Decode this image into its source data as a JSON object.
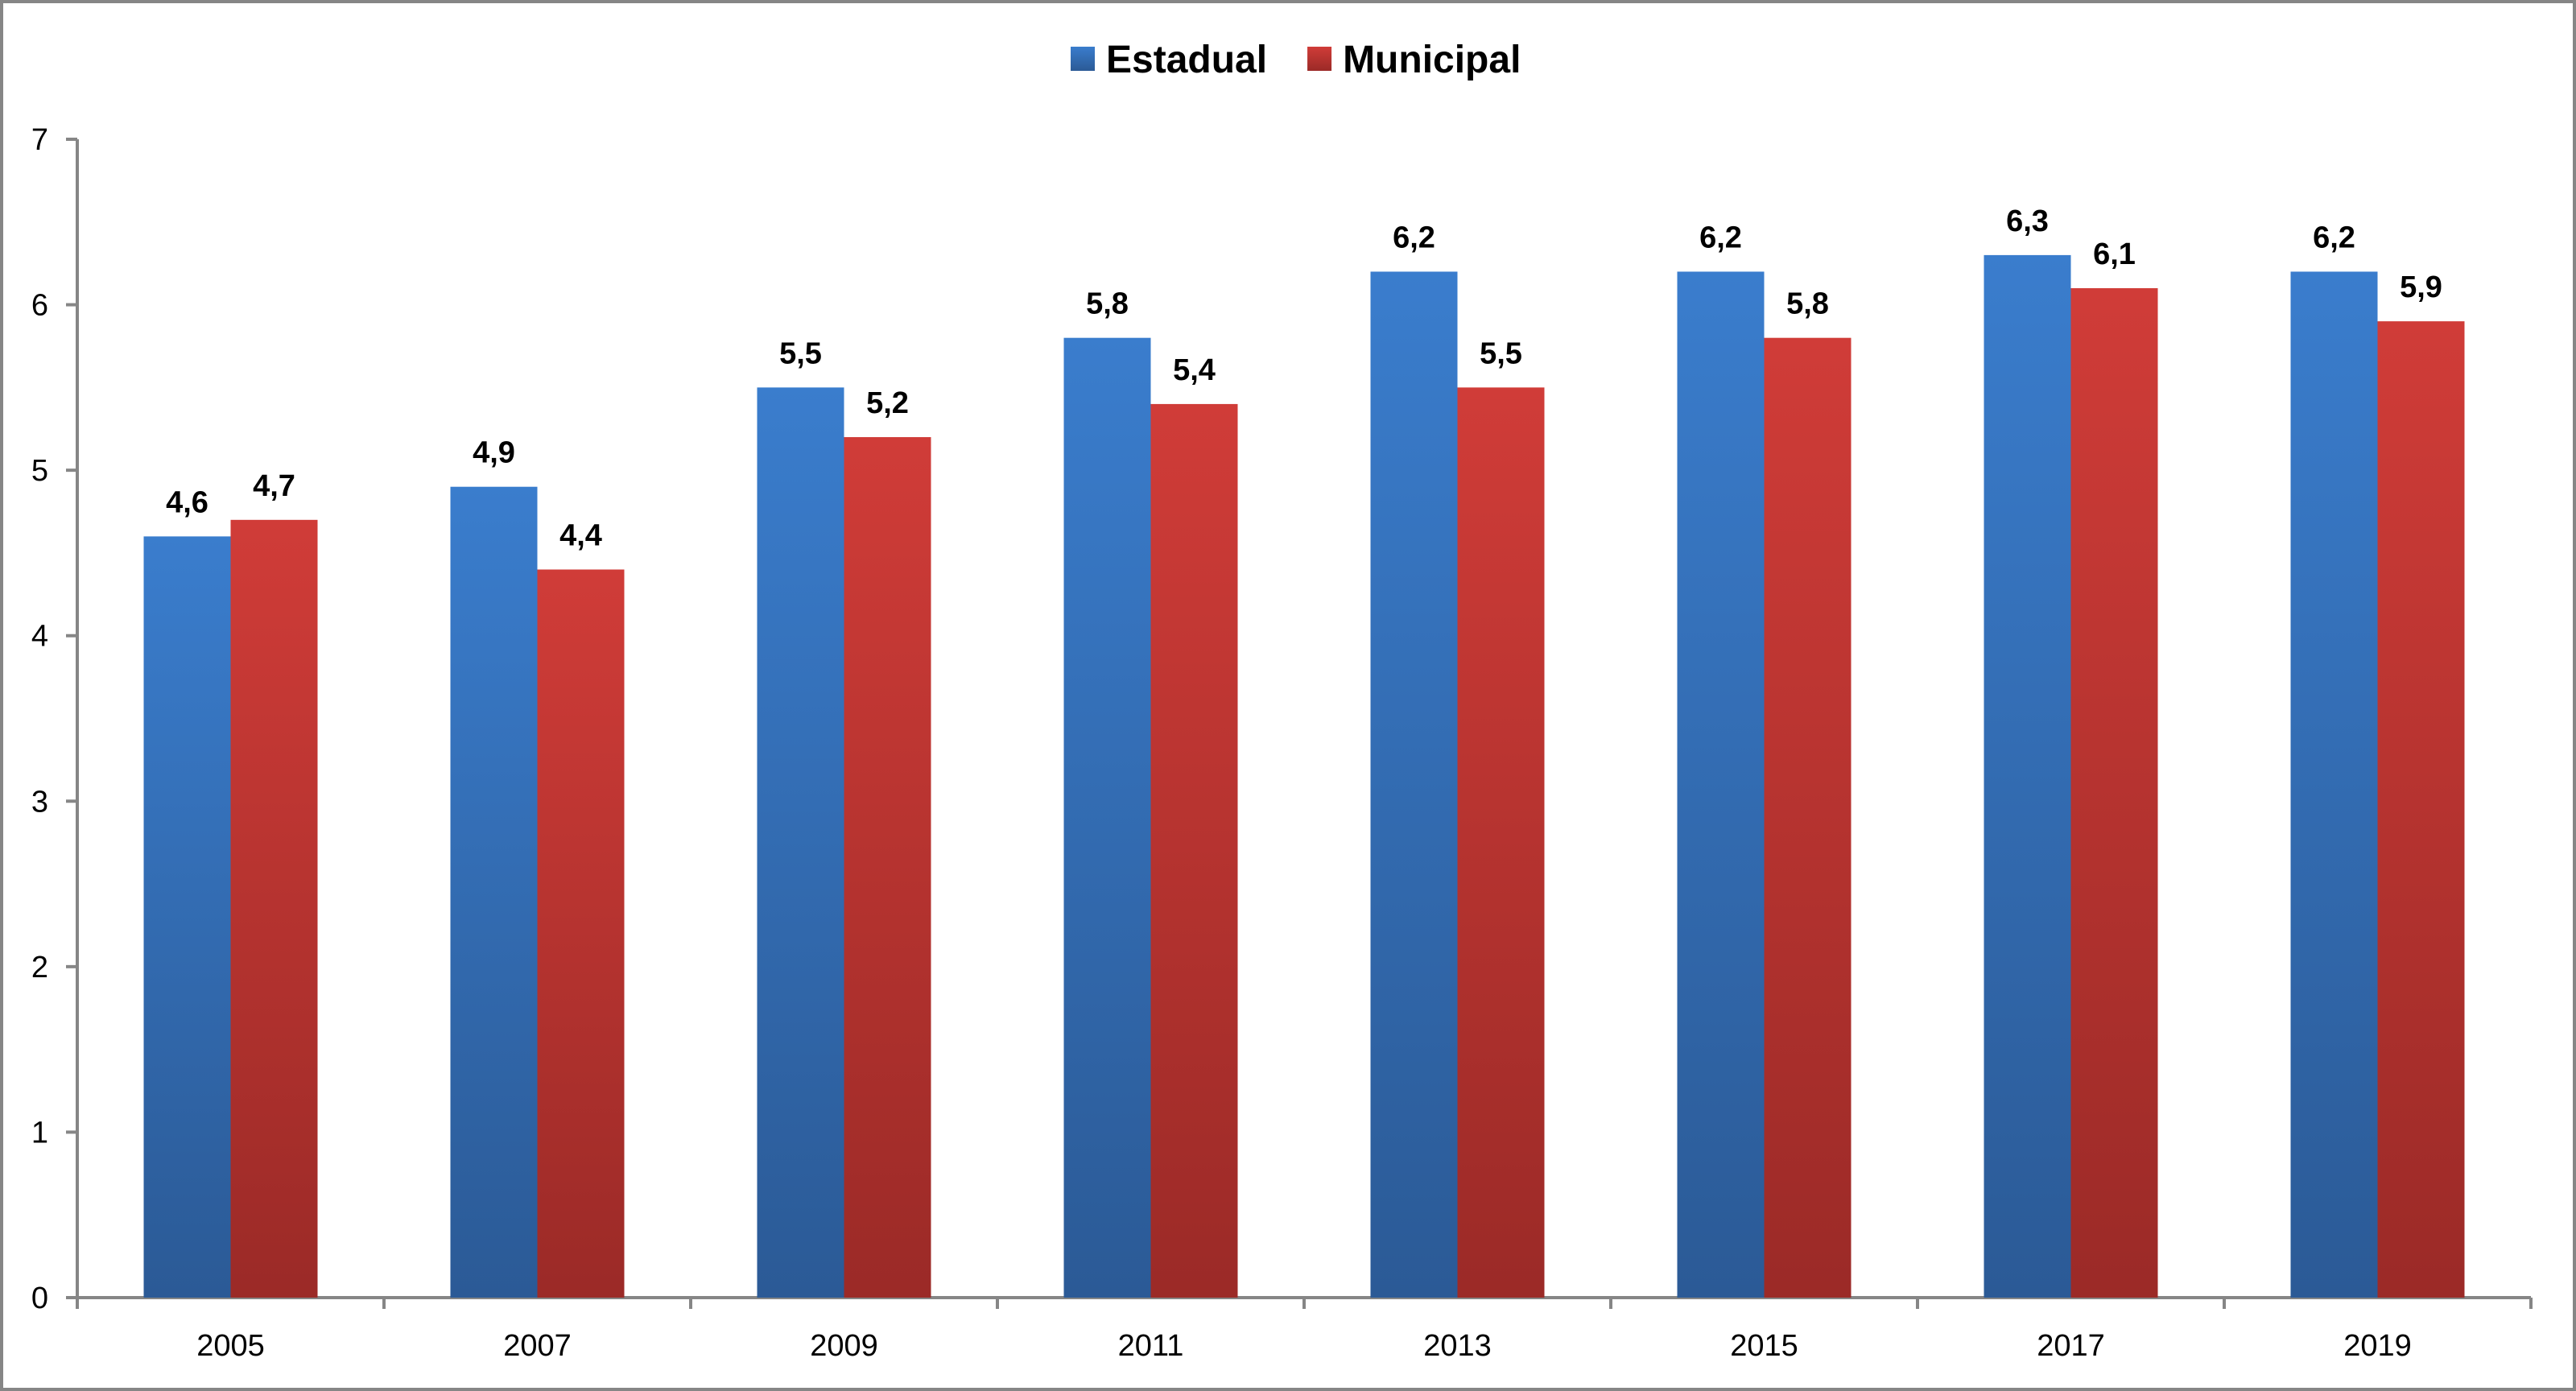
{
  "chart_data": {
    "type": "bar",
    "title": "",
    "xlabel": "",
    "ylabel": "",
    "categories": [
      "2005",
      "2007",
      "2009",
      "2011",
      "2013",
      "2015",
      "2017",
      "2019"
    ],
    "series": [
      {
        "name": "Estadual",
        "color": "#3a7dcd",
        "values": [
          4.6,
          4.9,
          5.5,
          5.8,
          6.2,
          6.2,
          6.3,
          6.2
        ],
        "labels": [
          "4,6",
          "4,9",
          "5,5",
          "5,8",
          "6,2",
          "6,2",
          "6,3",
          "6,2"
        ]
      },
      {
        "name": "Municipal",
        "color": "#cf3c38",
        "values": [
          4.7,
          4.4,
          5.2,
          5.4,
          5.5,
          5.8,
          6.1,
          5.9
        ],
        "labels": [
          "4,7",
          "4,4",
          "5,2",
          "5,4",
          "5,5",
          "5,8",
          "6,1",
          "5,9"
        ]
      }
    ],
    "ylim": [
      0,
      7
    ],
    "yticks": [
      "0",
      "1",
      "2",
      "3",
      "4",
      "5",
      "6",
      "7"
    ],
    "grid": false,
    "legend_position": "top-center"
  }
}
